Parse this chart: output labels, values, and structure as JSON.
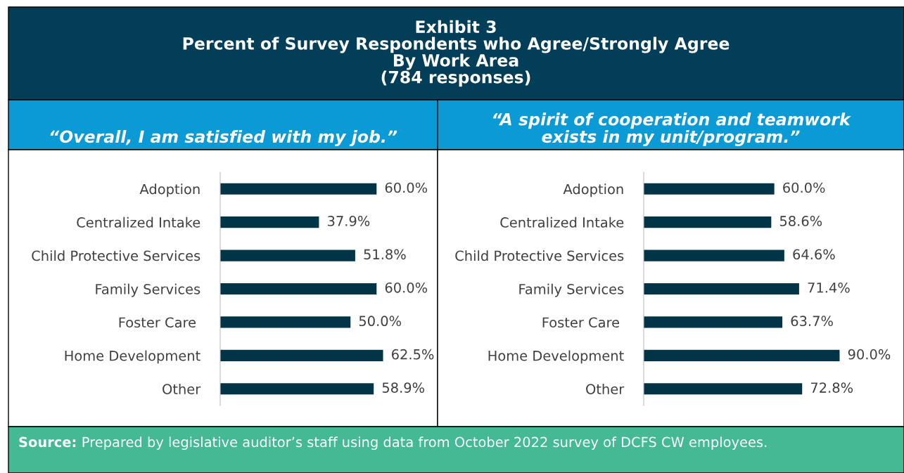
{
  "chart_data": [
    {
      "type": "bar",
      "orientation": "horizontal",
      "title": "Exhibit 3\nPercent of Survey Respondents who Agree/Strongly Agree\nBy Work Area\n(784 responses)",
      "subtitle": "“Overall, I am satisfied with my job.”",
      "categories": [
        "Adoption",
        "Centralized Intake",
        "Child Protective Services",
        "Family Services",
        "Foster Care ",
        "Home Development",
        "Other"
      ],
      "values": [
        60.0,
        37.9,
        51.8,
        60.0,
        50.0,
        62.5,
        58.9
      ],
      "value_labels": [
        "60.0%",
        "37.9%",
        "51.8%",
        "60.0%",
        "50.0%",
        "62.5%",
        "58.9%"
      ],
      "color": "#023447",
      "tick_labels": "y",
      "grid": false,
      "legend": false
    },
    {
      "type": "bar",
      "orientation": "horizontal",
      "subtitle": "“A spirit of cooperation and teamwork\nexists in my unit/program.”",
      "categories": [
        "Adoption",
        "Centralized Intake",
        "Child Protective Services",
        "Family Services",
        "Foster Care ",
        "Home Development",
        "Other"
      ],
      "values": [
        60.0,
        58.6,
        64.6,
        71.4,
        63.7,
        90.0,
        72.8
      ],
      "value_labels": [
        "60.0%",
        "58.6%",
        "64.6%",
        "71.4%",
        "63.7%",
        "90.0%",
        "72.8%"
      ],
      "color": "#023447",
      "tick_labels": "y",
      "grid": false,
      "legend": false,
      "annotations": [
        "Source:",
        "Prepared by legislative auditor’s staff using data from October 2022 survey of DCFS CW employees."
      ]
    }
  ]
}
